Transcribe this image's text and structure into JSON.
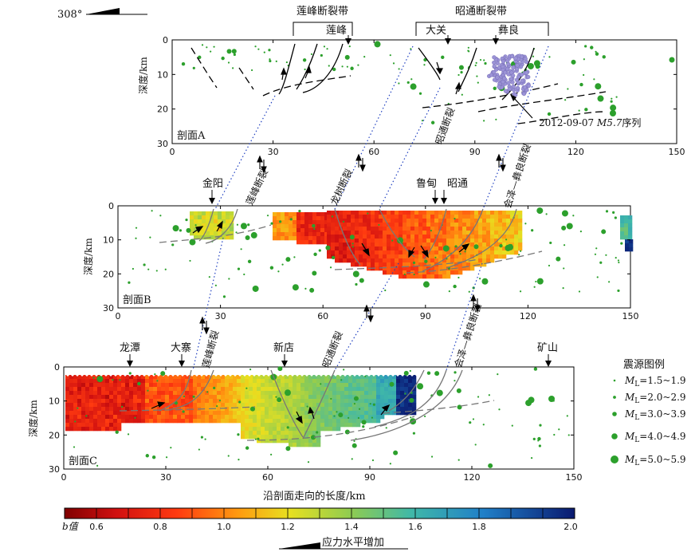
{
  "orientation": {
    "angle_label": "308°"
  },
  "fault_zones": [
    {
      "label": "莲峰断裂带"
    },
    {
      "label": "昭通断裂带"
    }
  ],
  "section_a": {
    "label": "剖面A",
    "ylabel": "深度/km",
    "x_ticks": [
      "0",
      "30",
      "60",
      "90",
      "120",
      "150"
    ],
    "y_ticks": [
      "0",
      "10",
      "20",
      "30"
    ],
    "places": [
      "莲峰",
      "大关",
      "彝良"
    ],
    "annotation": {
      "prefix": "2012-09-07 ",
      "mag": "M5.7",
      "suffix": "序列"
    }
  },
  "section_b": {
    "label": "剖面B",
    "ylabel": "深度/km",
    "x_ticks": [
      "0",
      "30",
      "60",
      "90",
      "120",
      "150"
    ],
    "y_ticks": [
      "0",
      "10",
      "20",
      "30"
    ],
    "places": [
      "金阳",
      "鲁甸",
      "昭通"
    ]
  },
  "section_c": {
    "label": "剖面C",
    "ylabel": "深度/km",
    "xlabel": "沿剖面走向的长度/km",
    "x_ticks": [
      "0",
      "30",
      "60",
      "90",
      "120",
      "150"
    ],
    "y_ticks": [
      "0",
      "10",
      "20",
      "30"
    ],
    "places": [
      "龙潭",
      "大寨",
      "新店",
      "矿山"
    ]
  },
  "connector_faults": {
    "ab": [
      "莲峰断裂",
      "龙树断裂",
      "昭通断裂",
      "会泽—彝良断裂"
    ],
    "bc": [
      "莲峰断裂",
      "昭通断裂",
      "会泽—彝良断裂"
    ]
  },
  "legend": {
    "title": "震源图例",
    "items": [
      {
        "sym": "M",
        "sub": "L",
        "range": "=1.5~1.9"
      },
      {
        "sym": "M",
        "sub": "L",
        "range": "=2.0~2.9"
      },
      {
        "sym": "M",
        "sub": "L",
        "range": "=3.0~3.9"
      },
      {
        "sym": "M",
        "sub": "L",
        "range": "=4.0~4.9"
      },
      {
        "sym": "M",
        "sub": "L",
        "range": "=5.0~5.9"
      }
    ]
  },
  "colorbar": {
    "label": "b值",
    "ticks": [
      "0.6",
      "0.8",
      "1.0",
      "1.2",
      "1.4",
      "1.6",
      "1.8",
      "2.0"
    ],
    "stress_label": "应力水平增加"
  },
  "colors": {
    "eq_green": "#2ca02c",
    "sequence_purple": "#9b93d6",
    "fault_gray": "#777777",
    "connector_blue": "#2040c0"
  }
}
